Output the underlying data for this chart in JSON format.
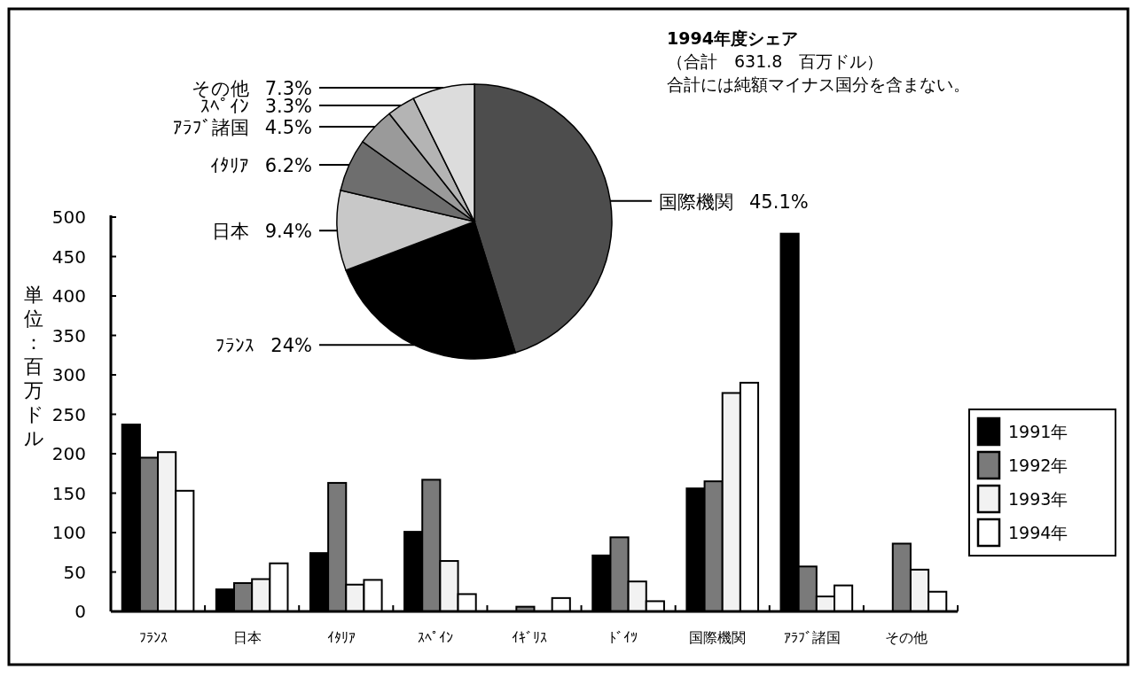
{
  "chart_data": [
    {
      "type": "bar",
      "categories": [
        "ﾌﾗﾝｽ",
        "日本",
        "ｲﾀﾘｱ",
        "ｽﾍﾟｲﾝ",
        "ｲｷﾞﾘｽ",
        "ﾄﾞｲﾂ",
        "国際機関",
        "ｱﾗﾌﾞ諸国",
        "その他"
      ],
      "series": [
        {
          "name": "1991年",
          "color": "#000000",
          "values": [
            237,
            28,
            74,
            101,
            null,
            71,
            156,
            479,
            null
          ]
        },
        {
          "name": "1992年",
          "color": "#7a7a7a",
          "values": [
            195,
            36,
            163,
            167,
            6,
            94,
            165,
            57,
            86
          ]
        },
        {
          "name": "1993年",
          "color": "#f2f2f2",
          "values": [
            202,
            41,
            34,
            64,
            null,
            38,
            277,
            19,
            53
          ]
        },
        {
          "name": "1994年",
          "color": "#ffffff",
          "values": [
            153,
            61,
            40,
            22,
            17,
            13,
            290,
            33,
            25
          ]
        }
      ],
      "ylim": [
        0,
        500
      ],
      "yticks": [
        0,
        50,
        100,
        150,
        200,
        250,
        300,
        350,
        400,
        450,
        500
      ],
      "ylabel": "単位：百万ドル",
      "legend": "right"
    },
    {
      "type": "pie",
      "title": "1994年度シェア",
      "subtitle": "（合計　631.8　百万ドル）",
      "annotations": [
        "合計には純額マイナス国分を含まない。"
      ],
      "categories": [
        "国際機関",
        "ﾌﾗﾝｽ",
        "日本",
        "ｲﾀﾘｱ",
        "ｱﾗﾌﾞ諸国",
        "ｽﾍﾟｲﾝ",
        "その他"
      ],
      "values": [
        45.1,
        24,
        9.4,
        6.2,
        4.5,
        3.3,
        7.3
      ],
      "colors": [
        "#4d4d4d",
        "#000000",
        "#c8c8c8",
        "#6e6e6e",
        "#9a9a9a",
        "#b4b4b4",
        "#dcdcdc"
      ],
      "value_labels": [
        "45.1%",
        "24%",
        "9.4%",
        "6.2%",
        "4.5%",
        "3.3%",
        "7.3%"
      ]
    }
  ]
}
